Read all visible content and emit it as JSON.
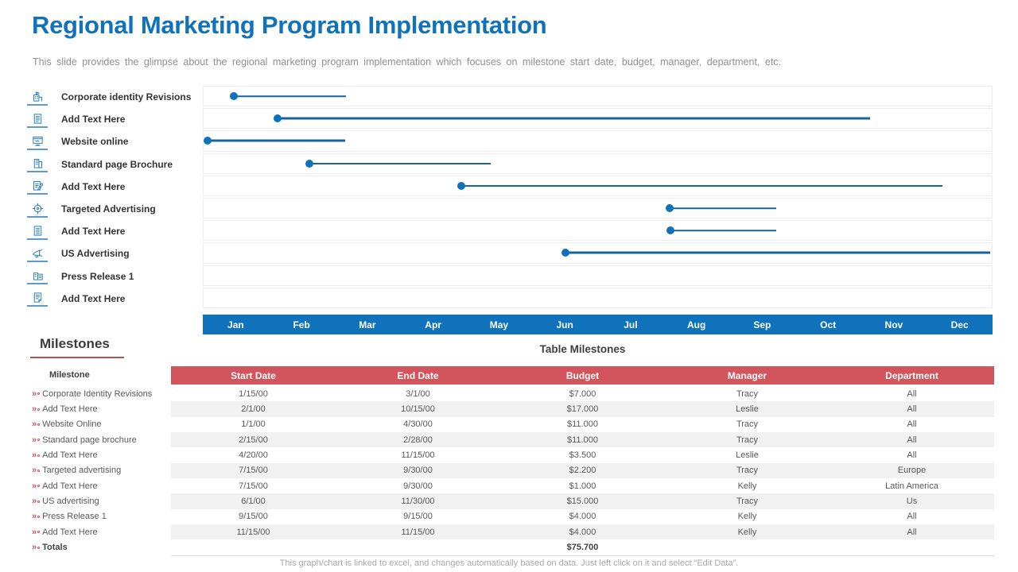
{
  "slide": {
    "title": "Regional Marketing Program Implementation",
    "subtitle": "This slide provides the glimpse about the regional marketing program implementation which focuses on milestone start date, budget, manager, department, etc.",
    "footer": "This graph/chart is linked to excel, and changes automatically based on data. Just left click on it and select “Edit Data”."
  },
  "colors": {
    "accent_blue": "#1072ba",
    "bar_line_blue": "#17639c",
    "header_red": "#d2545c",
    "underline_red": "#b5504c",
    "stripe_gray": "#f1f1f1",
    "grid_gray": "#ececec",
    "text_dark": "#404040",
    "text_gray": "#595959",
    "muted_gray": "#a8a8a8"
  },
  "gantt": {
    "months": [
      "Jan",
      "Feb",
      "Mar",
      "Apr",
      "May",
      "Jun",
      "Jul",
      "Aug",
      "Sep",
      "Oct",
      "Nov",
      "Dec"
    ],
    "rows": [
      {
        "icon": "corporate-building-icon",
        "label": "Corporate identity Revisions",
        "bar": {
          "start_pct": 3.8,
          "end_pct": 18.1,
          "weight": 1.5
        }
      },
      {
        "icon": "document-icon",
        "label": "Add Text Here",
        "bar": {
          "start_pct": 9.4,
          "end_pct": 84.6,
          "weight": 3
        }
      },
      {
        "icon": "website-monitor-icon",
        "label": "Website online",
        "bar": {
          "start_pct": 0.5,
          "end_pct": 18.0,
          "weight": 3
        }
      },
      {
        "icon": "building-icon",
        "label": "Standard page Brochure",
        "bar": {
          "start_pct": 13.4,
          "end_pct": 36.4,
          "weight": 2
        }
      },
      {
        "icon": "document-edit-icon",
        "label": "Add Text Here",
        "bar": {
          "start_pct": 32.7,
          "end_pct": 93.7,
          "weight": 2
        }
      },
      {
        "icon": "target-icon",
        "label": "Targeted Advertising",
        "bar": {
          "start_pct": 59.1,
          "end_pct": 72.7,
          "weight": 1.5
        }
      },
      {
        "icon": "list-icon",
        "label": "Add Text Here",
        "bar": {
          "start_pct": 59.2,
          "end_pct": 72.7,
          "weight": 1.5
        }
      },
      {
        "icon": "megaphone-icon",
        "label": "US Advertising",
        "bar": {
          "start_pct": 45.9,
          "end_pct": 99.8,
          "weight": 3
        }
      },
      {
        "icon": "press-building-icon",
        "label": "Press Release 1",
        "bar": null
      },
      {
        "icon": "note-icon",
        "label": "Add Text Here",
        "bar": null
      }
    ]
  },
  "chart_data": {
    "type": "gantt",
    "title": "Regional marketing program timeline",
    "x_axis": [
      "Jan",
      "Feb",
      "Mar",
      "Apr",
      "May",
      "Jun",
      "Jul",
      "Aug",
      "Sep",
      "Oct",
      "Nov",
      "Dec"
    ],
    "tasks": [
      {
        "name": "Corporate identity Revisions",
        "start": "1/15/00",
        "end": "3/1/00"
      },
      {
        "name": "Add Text Here",
        "start": "2/1/00",
        "end": "10/15/00"
      },
      {
        "name": "Website online",
        "start": "1/1/00",
        "end": "4/30/00"
      },
      {
        "name": "Standard page Brochure",
        "start": "2/15/00",
        "end": "2/28/00"
      },
      {
        "name": "Add Text Here",
        "start": "4/20/00",
        "end": "11/15/00"
      },
      {
        "name": "Targeted Advertising",
        "start": "7/15/00",
        "end": "9/30/00"
      },
      {
        "name": "Add Text Here",
        "start": "7/15/00",
        "end": "9/30/00"
      },
      {
        "name": "US Advertising",
        "start": "6/1/00",
        "end": "11/30/00"
      },
      {
        "name": "Press Release 1",
        "start": "9/15/00",
        "end": "9/15/00"
      },
      {
        "name": "Add Text Here",
        "start": "11/15/00",
        "end": "11/15/00"
      }
    ]
  },
  "milestones_panel": {
    "heading": "Milestones",
    "col_header": "Milestone",
    "items": [
      "Corporate Identity Revisions",
      "Add Text Here",
      "Website Online",
      "Standard page brochure",
      "Add Text Here",
      "Targeted advertising",
      "Add Text Here",
      "US advertising",
      "Press Release 1",
      "Add Text Here"
    ],
    "totals_label": "Totals"
  },
  "table": {
    "title": "Table Milestones",
    "headers": [
      "Start Date",
      "End Date",
      "Budget",
      "Manager",
      "Department"
    ],
    "rows": [
      {
        "start": "1/15/00",
        "end": "3/1/00",
        "budget": "$7.000",
        "manager": "Tracy",
        "department": "All"
      },
      {
        "start": "2/1/00",
        "end": "10/15/00",
        "budget": "$17.000",
        "manager": "Leslie",
        "department": "All"
      },
      {
        "start": "1/1/00",
        "end": "4/30/00",
        "budget": "$11.000",
        "manager": "Tracy",
        "department": "All"
      },
      {
        "start": "2/15/00",
        "end": "2/28/00",
        "budget": "$11.000",
        "manager": "Tracy",
        "department": "All"
      },
      {
        "start": "4/20/00",
        "end": "11/15/00",
        "budget": "$3.500",
        "manager": "Leslie",
        "department": "All"
      },
      {
        "start": "7/15/00",
        "end": "9/30/00",
        "budget": "$2.200",
        "manager": "Tracy",
        "department": "Europe"
      },
      {
        "start": "7/15/00",
        "end": "9/30/00",
        "budget": "$1.000",
        "manager": "Kelly",
        "department": "Latin America"
      },
      {
        "start": "6/1/00",
        "end": "11/30/00",
        "budget": "$15.000",
        "manager": "Tracy",
        "department": "Us"
      },
      {
        "start": "9/15/00",
        "end": "9/15/00",
        "budget": "$4.000",
        "manager": "Kelly",
        "department": "All"
      },
      {
        "start": "11/15/00",
        "end": "11/15/00",
        "budget": "$4.000",
        "manager": "Kelly",
        "department": "All"
      }
    ],
    "totals_budget": "$75.700"
  }
}
